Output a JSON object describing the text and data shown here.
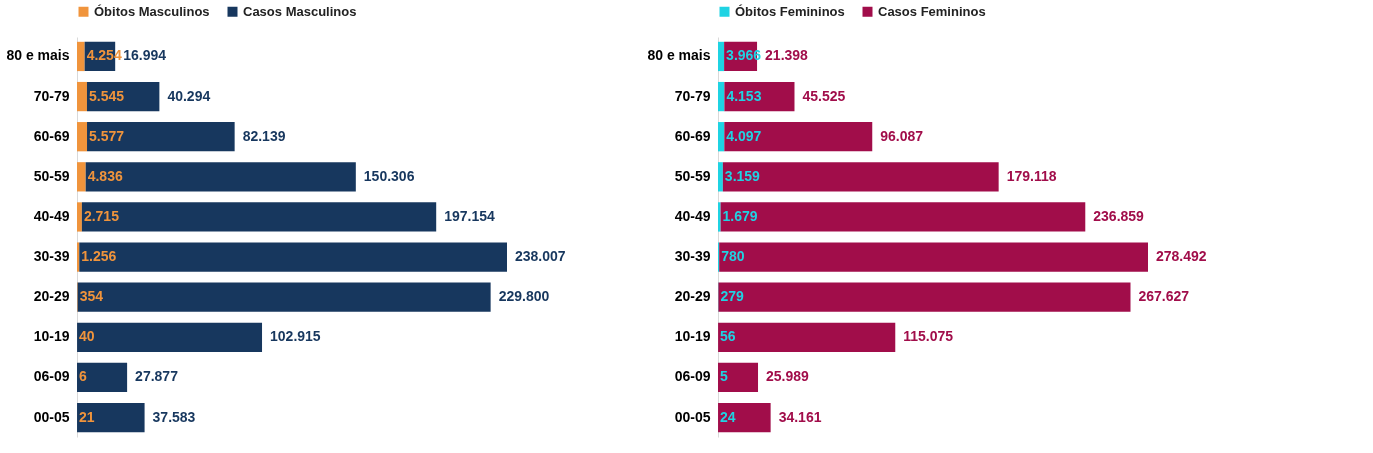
{
  "chart_data": [
    {
      "type": "bar",
      "orientation": "horizontal",
      "stacked": true,
      "legend": "top",
      "categories": [
        "80 e mais",
        "70-79",
        "60-69",
        "50-59",
        "40-49",
        "30-39",
        "20-29",
        "10-19",
        "06-09",
        "00-05"
      ],
      "series": [
        {
          "name": "Óbitos Masculinos",
          "color": "#f0943c",
          "values": [
            4254,
            5545,
            5577,
            4836,
            2715,
            1256,
            354,
            40,
            6,
            21
          ],
          "value_labels": [
            "4.254",
            "5.545",
            "5.577",
            "4.836",
            "2.715",
            "1.256",
            "354",
            "40",
            "6",
            "21"
          ]
        },
        {
          "name": "Casos Masculinos",
          "color": "#17375e",
          "values": [
            16994,
            40294,
            82139,
            150306,
            197154,
            238007,
            229800,
            102915,
            27877,
            37583
          ],
          "value_labels": [
            "16.994",
            "40.294",
            "82.139",
            "150.306",
            "197.154",
            "238.007",
            "229.800",
            "102.915",
            "27.877",
            "37.583"
          ]
        }
      ]
    },
    {
      "type": "bar",
      "orientation": "horizontal",
      "stacked": true,
      "legend": "top",
      "categories": [
        "80 e mais",
        "70-79",
        "60-69",
        "50-59",
        "40-49",
        "30-39",
        "20-29",
        "10-19",
        "06-09",
        "00-05"
      ],
      "series": [
        {
          "name": "Óbitos Femininos",
          "color": "#1fd3e3",
          "values": [
            3966,
            4153,
            4097,
            3159,
            1679,
            780,
            279,
            56,
            5,
            24
          ],
          "value_labels": [
            "3.966",
            "4.153",
            "4.097",
            "3.159",
            "1.679",
            "780",
            "279",
            "56",
            "5",
            "24"
          ]
        },
        {
          "name": "Casos Femininos",
          "color": "#a10d4a",
          "values": [
            21398,
            45525,
            96087,
            179118,
            236859,
            278492,
            267627,
            115075,
            25989,
            34161
          ],
          "value_labels": [
            "21.398",
            "45.525",
            "96.087",
            "179.118",
            "236.859",
            "278.492",
            "267.627",
            "115.075",
            "25.989",
            "34.161"
          ]
        }
      ]
    }
  ]
}
